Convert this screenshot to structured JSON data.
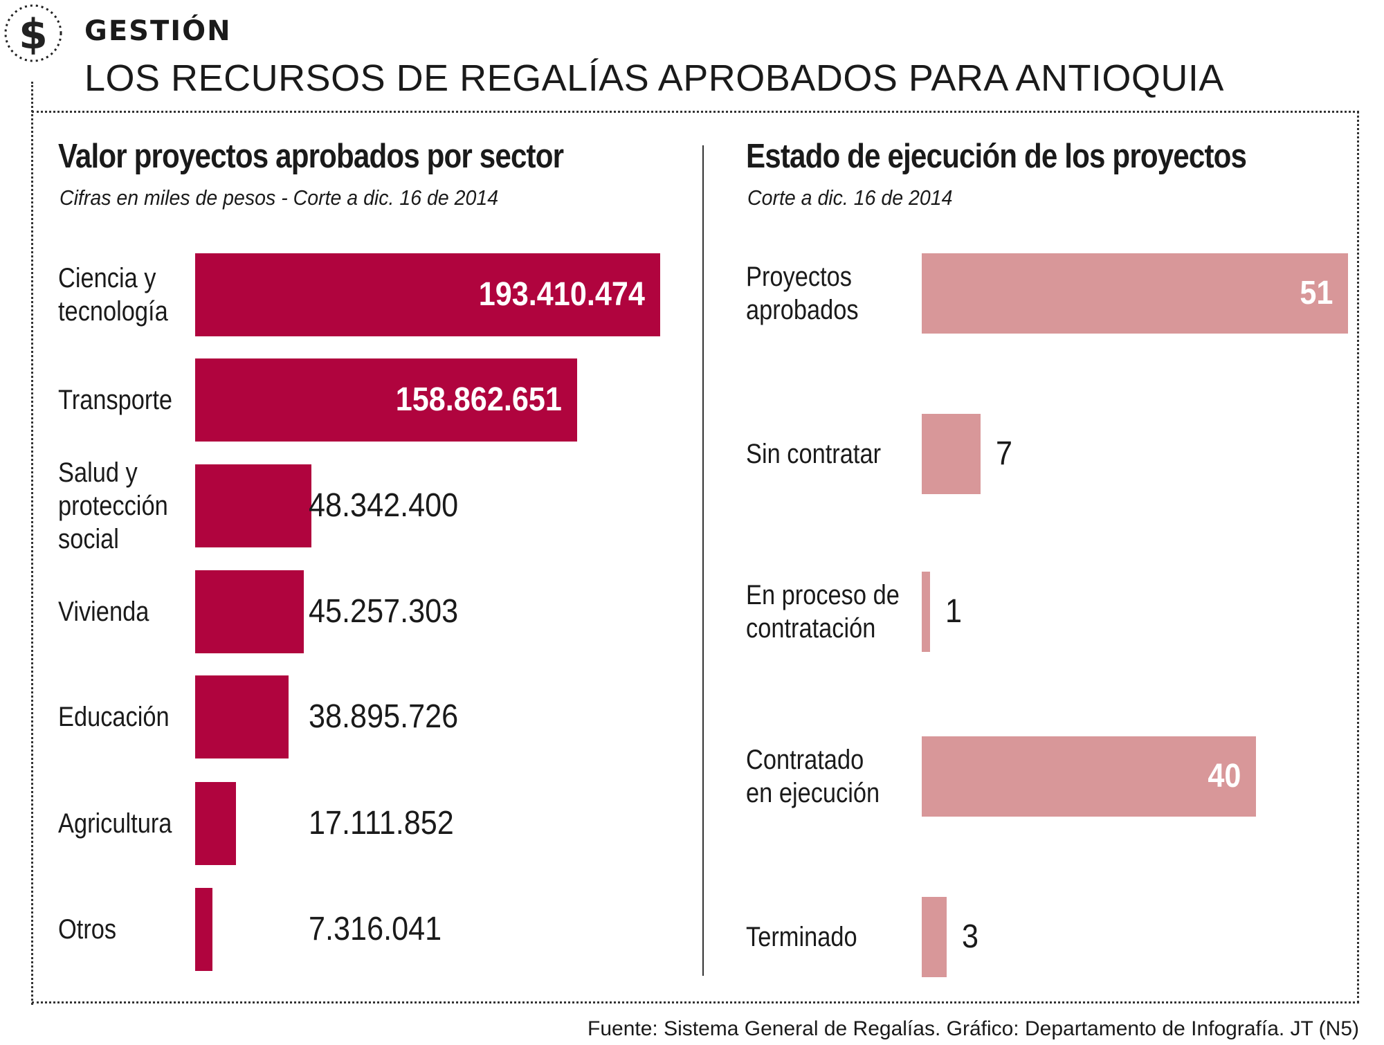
{
  "header": {
    "kicker": "GESTIÓN",
    "title": "LOS RECURSOS DE REGALÍAS APROBADOS PARA ANTIOQUIA",
    "icon": "dollar-icon"
  },
  "colors": {
    "left_bar": "#b0043e",
    "right_bar": "#d89799",
    "text": "#1a1a1a"
  },
  "chart_data": [
    {
      "type": "bar",
      "orientation": "horizontal",
      "title": "Valor proyectos  aprobados por sector",
      "subtitle": "Cifras en miles de pesos - Corte a dic. 16 de 2014",
      "categories": [
        "Ciencia  y\ntecnología",
        "Transporte",
        "Salud y\nprotección\nsocial",
        "Vivienda",
        "Educación",
        "Agricultura",
        "Otros"
      ],
      "values": [
        193410474,
        158862651,
        48342400,
        45257303,
        38895726,
        17111852,
        7316041
      ],
      "value_labels": [
        "193.410.474",
        "158.862.651",
        "48.342.400",
        "45.257.303",
        "38.895.726",
        "17.111.852",
        "7.316.041"
      ],
      "xlim": [
        0,
        193410474
      ]
    },
    {
      "type": "bar",
      "orientation": "horizontal",
      "title": "Estado de ejecución de los proyectos",
      "subtitle": "Corte a dic. 16 de 2014",
      "categories": [
        "Proyectos\naprobados",
        "Sin contratar",
        "En proceso de\ncontratación",
        "Contratado\nen ejecución",
        "Terminado"
      ],
      "values": [
        51,
        7,
        1,
        40,
        3
      ],
      "value_labels": [
        "51",
        "7",
        "1",
        "40",
        "3"
      ],
      "xlim": [
        0,
        51
      ]
    }
  ],
  "footer": {
    "source": "Fuente: Sistema General de Regalías. Gráfico: Departamento de Infografía. JT (N5)"
  }
}
